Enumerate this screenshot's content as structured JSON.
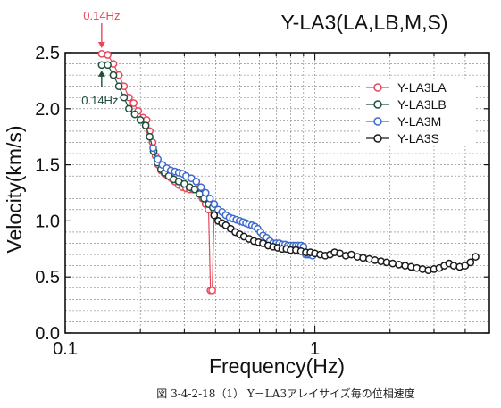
{
  "chart_data": {
    "type": "scatter",
    "title": "Y-LA3(LA,LB,M,S)",
    "caption": "図 3-4-2-18（1） Y－LA3アレイサイズ毎の位相速度",
    "xlabel": "Frequency(Hz)",
    "ylabel": "Velocity(km/s)",
    "xscale": "log",
    "xlim": [
      0.1,
      5
    ],
    "ylim": [
      0.0,
      2.5
    ],
    "x_tick_labels": [
      {
        "value": 0.1,
        "label": "0.1"
      },
      {
        "value": 1,
        "label": "1"
      }
    ],
    "y_tick_labels": [
      {
        "value": 0.0,
        "label": "0.0"
      },
      {
        "value": 0.5,
        "label": "0.5"
      },
      {
        "value": 1.0,
        "label": "1.0"
      },
      {
        "value": 1.5,
        "label": "1.5"
      },
      {
        "value": 2.0,
        "label": "2.0"
      },
      {
        "value": 2.5,
        "label": "2.5"
      }
    ],
    "grid": true,
    "legend_position": "top-right",
    "annotations": [
      {
        "text": "0.14Hz",
        "x": 0.14,
        "y": 2.5,
        "color": "#e8485c",
        "placement": "above"
      },
      {
        "text": "0.14Hz",
        "x": 0.14,
        "y": 2.39,
        "color": "#1f4f3a",
        "placement": "below"
      }
    ],
    "series": [
      {
        "name": "Y-LA3LA",
        "color": "#e8485c",
        "points": [
          [
            0.14,
            2.49
          ],
          [
            0.148,
            2.48
          ],
          [
            0.156,
            2.4
          ],
          [
            0.164,
            2.3
          ],
          [
            0.172,
            2.2
          ],
          [
            0.18,
            2.1
          ],
          [
            0.188,
            2.05
          ],
          [
            0.196,
            1.98
          ],
          [
            0.205,
            1.92
          ],
          [
            0.212,
            1.9
          ],
          [
            0.218,
            1.8
          ],
          [
            0.224,
            1.7
          ],
          [
            0.23,
            1.58
          ],
          [
            0.236,
            1.5
          ],
          [
            0.242,
            1.45
          ],
          [
            0.25,
            1.42
          ],
          [
            0.258,
            1.4
          ],
          [
            0.266,
            1.38
          ],
          [
            0.275,
            1.35
          ],
          [
            0.285,
            1.32
          ],
          [
            0.295,
            1.3
          ],
          [
            0.305,
            1.29
          ],
          [
            0.315,
            1.28
          ],
          [
            0.325,
            1.28
          ],
          [
            0.335,
            1.28
          ],
          [
            0.345,
            1.25
          ],
          [
            0.355,
            1.2
          ],
          [
            0.365,
            1.15
          ],
          [
            0.375,
            1.1
          ],
          [
            0.382,
            0.38
          ],
          [
            0.388,
            0.38
          ],
          [
            0.395,
            1.08
          ]
        ]
      },
      {
        "name": "Y-LA3LB",
        "color": "#1f4f3a",
        "points": [
          [
            0.14,
            2.39
          ],
          [
            0.148,
            2.39
          ],
          [
            0.156,
            2.3
          ],
          [
            0.164,
            2.2
          ],
          [
            0.172,
            2.1
          ],
          [
            0.18,
            2.0
          ],
          [
            0.19,
            1.95
          ],
          [
            0.2,
            1.9
          ],
          [
            0.21,
            1.85
          ],
          [
            0.218,
            1.75
          ],
          [
            0.226,
            1.62
          ],
          [
            0.234,
            1.52
          ],
          [
            0.242,
            1.46
          ],
          [
            0.25,
            1.43
          ],
          [
            0.26,
            1.4
          ],
          [
            0.272,
            1.37
          ],
          [
            0.285,
            1.35
          ],
          [
            0.3,
            1.33
          ],
          [
            0.315,
            1.3
          ],
          [
            0.33,
            1.28
          ],
          [
            0.345,
            1.24
          ],
          [
            0.36,
            1.2
          ],
          [
            0.375,
            1.15
          ],
          [
            0.39,
            1.12
          ]
        ]
      },
      {
        "name": "Y-LA3M",
        "color": "#3b6ad0",
        "points": [
          [
            0.225,
            1.65
          ],
          [
            0.235,
            1.55
          ],
          [
            0.245,
            1.5
          ],
          [
            0.255,
            1.47
          ],
          [
            0.265,
            1.45
          ],
          [
            0.275,
            1.44
          ],
          [
            0.285,
            1.43
          ],
          [
            0.295,
            1.42
          ],
          [
            0.305,
            1.4
          ],
          [
            0.32,
            1.38
          ],
          [
            0.335,
            1.35
          ],
          [
            0.35,
            1.3
          ],
          [
            0.365,
            1.25
          ],
          [
            0.38,
            1.2
          ],
          [
            0.395,
            1.15
          ],
          [
            0.41,
            1.1
          ],
          [
            0.425,
            1.08
          ],
          [
            0.44,
            1.05
          ],
          [
            0.455,
            1.03
          ],
          [
            0.47,
            1.02
          ],
          [
            0.485,
            1.01
          ],
          [
            0.5,
            1.0
          ],
          [
            0.515,
            0.99
          ],
          [
            0.53,
            0.98
          ],
          [
            0.545,
            0.97
          ],
          [
            0.56,
            0.96
          ],
          [
            0.575,
            0.95
          ],
          [
            0.59,
            0.93
          ],
          [
            0.605,
            0.9
          ],
          [
            0.62,
            0.87
          ],
          [
            0.64,
            0.85
          ],
          [
            0.66,
            0.82
          ],
          [
            0.68,
            0.8
          ],
          [
            0.7,
            0.8
          ],
          [
            0.72,
            0.8
          ],
          [
            0.74,
            0.79
          ],
          [
            0.76,
            0.79
          ],
          [
            0.78,
            0.78
          ],
          [
            0.8,
            0.78
          ],
          [
            0.82,
            0.78
          ],
          [
            0.84,
            0.78
          ],
          [
            0.86,
            0.78
          ],
          [
            0.88,
            0.78
          ],
          [
            0.9,
            0.77
          ],
          [
            0.92,
            0.7
          ],
          [
            0.94,
            0.7
          ],
          [
            0.96,
            0.7
          ],
          [
            0.98,
            0.69
          ]
        ]
      },
      {
        "name": "Y-LA3S",
        "color": "#1a1a1a",
        "points": [
          [
            0.395,
            1.05
          ],
          [
            0.41,
            1.0
          ],
          [
            0.425,
            0.98
          ],
          [
            0.44,
            0.96
          ],
          [
            0.46,
            0.93
          ],
          [
            0.48,
            0.9
          ],
          [
            0.5,
            0.88
          ],
          [
            0.52,
            0.86
          ],
          [
            0.545,
            0.84
          ],
          [
            0.57,
            0.82
          ],
          [
            0.595,
            0.81
          ],
          [
            0.62,
            0.8
          ],
          [
            0.65,
            0.78
          ],
          [
            0.68,
            0.77
          ],
          [
            0.71,
            0.76
          ],
          [
            0.74,
            0.75
          ],
          [
            0.77,
            0.75
          ],
          [
            0.8,
            0.74
          ],
          [
            0.84,
            0.74
          ],
          [
            0.88,
            0.73
          ],
          [
            0.92,
            0.72
          ],
          [
            0.96,
            0.72
          ],
          [
            1.0,
            0.71
          ],
          [
            1.05,
            0.7
          ],
          [
            1.1,
            0.69
          ],
          [
            1.15,
            0.7
          ],
          [
            1.2,
            0.72
          ],
          [
            1.26,
            0.71
          ],
          [
            1.33,
            0.69
          ],
          [
            1.4,
            0.7
          ],
          [
            1.48,
            0.68
          ],
          [
            1.56,
            0.67
          ],
          [
            1.65,
            0.66
          ],
          [
            1.74,
            0.65
          ],
          [
            1.84,
            0.64
          ],
          [
            1.94,
            0.63
          ],
          [
            2.05,
            0.62
          ],
          [
            2.17,
            0.61
          ],
          [
            2.3,
            0.6
          ],
          [
            2.43,
            0.59
          ],
          [
            2.56,
            0.58
          ],
          [
            2.7,
            0.57
          ],
          [
            2.85,
            0.56
          ],
          [
            3.0,
            0.57
          ],
          [
            3.15,
            0.58
          ],
          [
            3.3,
            0.6
          ],
          [
            3.45,
            0.62
          ],
          [
            3.6,
            0.6
          ],
          [
            3.8,
            0.59
          ],
          [
            4.0,
            0.6
          ],
          [
            4.2,
            0.63
          ],
          [
            4.4,
            0.68
          ]
        ]
      }
    ]
  }
}
